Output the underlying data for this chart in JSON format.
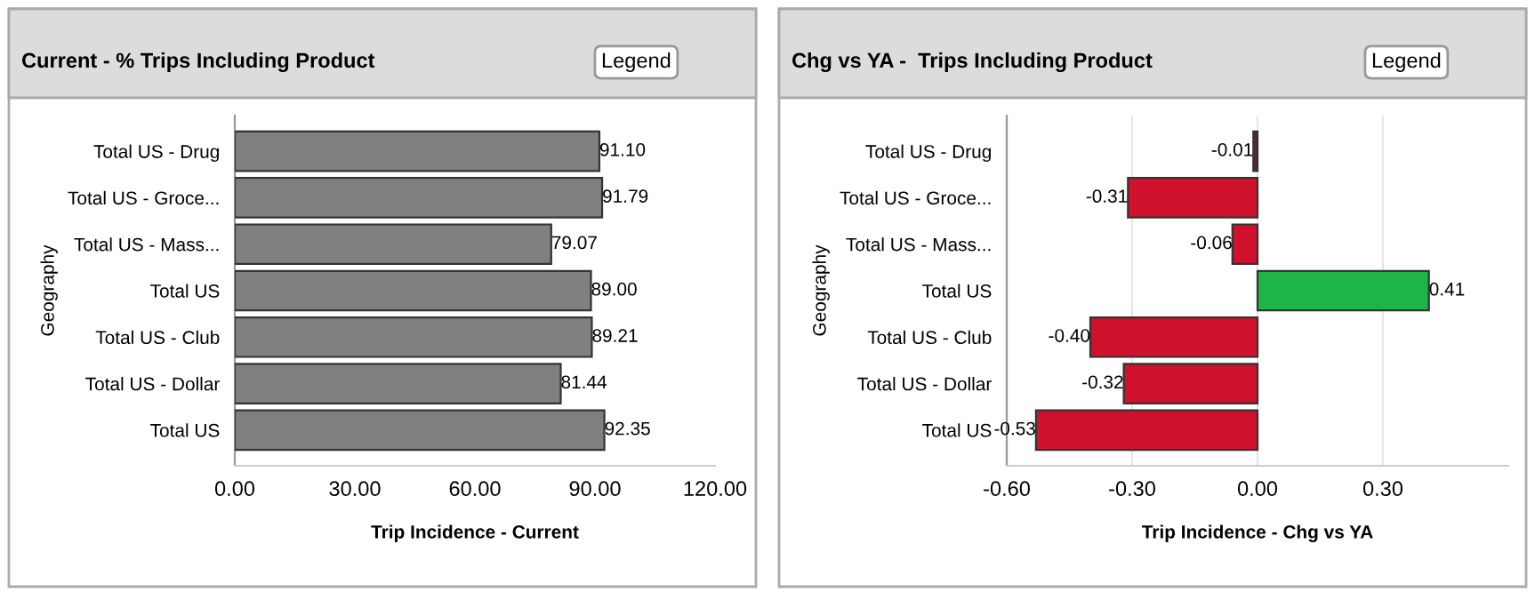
{
  "chart_data": [
    {
      "type": "bar",
      "orientation": "horizontal",
      "title": "Current - % Trips Including Product",
      "ylabel": "Geography",
      "xlabel": "Trip Incidence - Current",
      "annotations": [
        "Legend"
      ],
      "categories": [
        "Total US - Drug",
        "Total US - Groce...",
        "Total US - Mass...",
        "Total US",
        "Total US - Club",
        "Total US - Dollar",
        "Total US"
      ],
      "values": [
        91.1,
        91.79,
        79.07,
        89.0,
        89.21,
        81.44,
        92.35
      ],
      "value_labels": [
        "91.10",
        "91.79",
        "79.07",
        "89.00",
        "89.21",
        "81.44",
        "92.35"
      ],
      "colors": [
        "#808080",
        "#808080",
        "#808080",
        "#808080",
        "#808080",
        "#808080",
        "#808080"
      ],
      "xlim": [
        0,
        120
      ],
      "xticks": [
        {
          "value": 0,
          "label": "0.00"
        },
        {
          "value": 30,
          "label": "30.00"
        },
        {
          "value": 60,
          "label": "60.00"
        },
        {
          "value": 90,
          "label": "90.00"
        },
        {
          "value": 120,
          "label": "120.00"
        }
      ],
      "grid": false,
      "legend": false
    },
    {
      "type": "bar",
      "orientation": "horizontal",
      "title": "Chg vs YA -  Trips Including Product",
      "ylabel": "Geography",
      "xlabel": "Trip Incidence - Chg vs YA",
      "annotations": [
        "Legend"
      ],
      "categories": [
        "Total US - Drug",
        "Total US - Groce...",
        "Total US - Mass...",
        "Total US",
        "Total US - Club",
        "Total US - Dollar",
        "Total US"
      ],
      "values": [
        -0.01,
        -0.31,
        -0.06,
        0.41,
        -0.4,
        -0.32,
        -0.53
      ],
      "value_labels": [
        "-0.01",
        "-0.31",
        "-0.06",
        "0.41",
        "-0.40",
        "-0.32",
        "-0.53"
      ],
      "colors": [
        "#5a2a2a",
        "#d0112b",
        "#d0112b",
        "#1db546",
        "#d0112b",
        "#d0112b",
        "#d0112b"
      ],
      "xlim": [
        -0.6,
        0.6
      ],
      "xticks": [
        {
          "value": -0.6,
          "label": "-0.60"
        },
        {
          "value": -0.3,
          "label": "-0.30"
        },
        {
          "value": 0,
          "label": "0.00"
        },
        {
          "value": 0.3,
          "label": "0.30"
        }
      ],
      "grid": "x",
      "legend": false
    }
  ]
}
